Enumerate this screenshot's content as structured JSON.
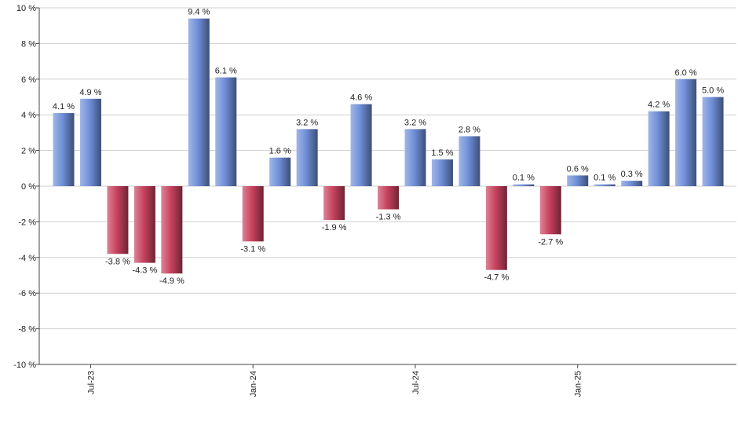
{
  "chart_data": {
    "type": "bar",
    "categories": [
      null,
      "Jul-23",
      null,
      null,
      null,
      null,
      null,
      "Jan-24",
      null,
      null,
      null,
      null,
      null,
      "Jul-24",
      null,
      null,
      null,
      null,
      null,
      "Jan-25",
      null,
      null,
      null,
      null,
      null
    ],
    "values": [
      4.1,
      4.9,
      -3.8,
      -4.3,
      -4.9,
      9.4,
      6.1,
      -3.1,
      1.6,
      3.2,
      -1.9,
      4.6,
      -1.3,
      3.2,
      1.5,
      2.8,
      -4.7,
      0.1,
      -2.7,
      0.6,
      0.1,
      0.3,
      4.2,
      6.0,
      5.0
    ],
    "value_labels": [
      "4.1 %",
      "4.9 %",
      "-3.8 %",
      "-4.3 %",
      "-4.9 %",
      "9.4 %",
      "6.1 %",
      "-3.1 %",
      "1.6 %",
      "3.2 %",
      "-1.9 %",
      "4.6 %",
      "-1.3 %",
      "3.2 %",
      "1.5 %",
      "2.8 %",
      "-4.7 %",
      "0.1 %",
      "-2.7 %",
      "0.6 %",
      "0.1 %",
      "0.3 %",
      "4.2 %",
      "6.0 %",
      "5.0 %"
    ],
    "positive_color": "#6f8fd8",
    "negative_color": "#c8425e",
    "ylim": [
      -10,
      10
    ],
    "yticks": [
      {
        "value": -10,
        "label": "-10 %"
      },
      {
        "value": -8,
        "label": "-8 %"
      },
      {
        "value": -6,
        "label": "-6 %"
      },
      {
        "value": -4,
        "label": "-4 %"
      },
      {
        "value": -2,
        "label": "-2 %"
      },
      {
        "value": 0,
        "label": "0 %"
      },
      {
        "value": 2,
        "label": "2 %"
      },
      {
        "value": 4,
        "label": "4 %"
      },
      {
        "value": 6,
        "label": "6 %"
      },
      {
        "value": 8,
        "label": "8 %"
      },
      {
        "value": 10,
        "label": "10 %"
      }
    ],
    "grid": true
  }
}
